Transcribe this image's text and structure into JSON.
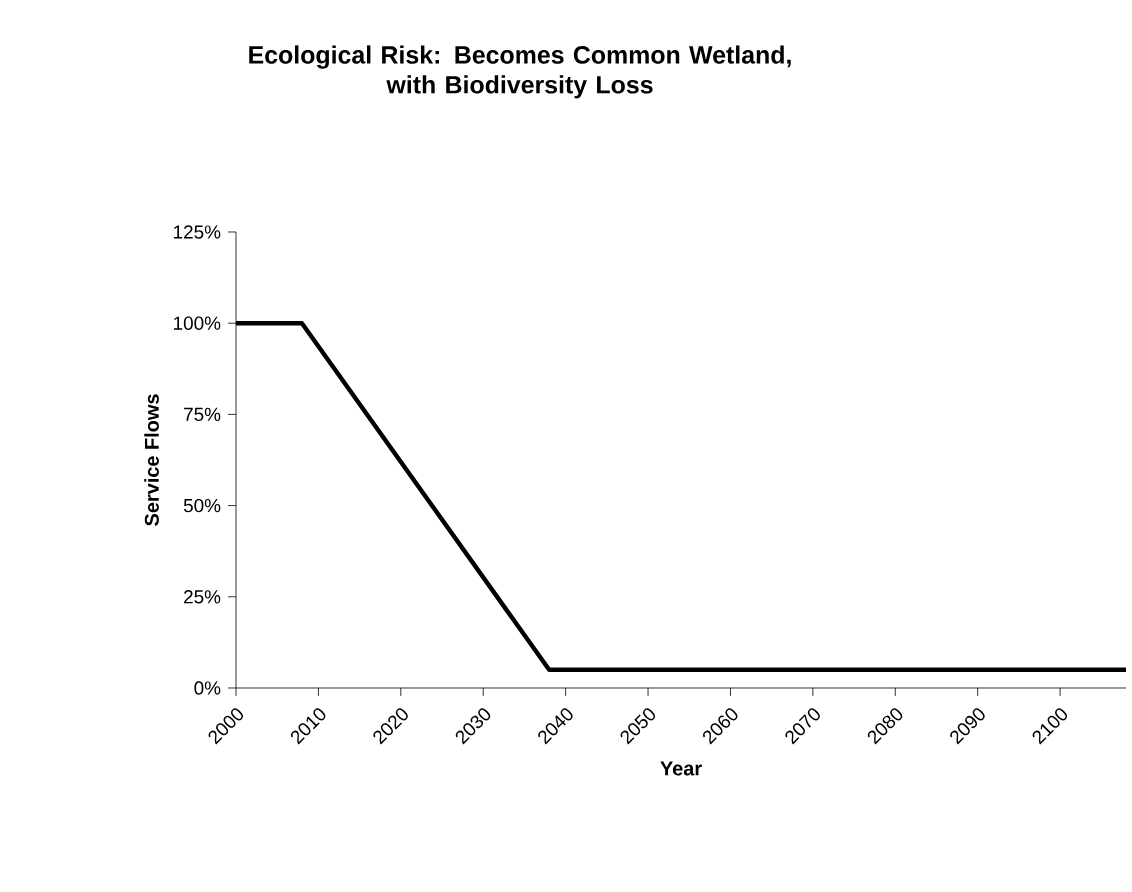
{
  "chart_data": {
    "type": "line",
    "title": "Ecological Risk: Becomes Common Wetland,\nwith Biodiversity Loss",
    "xlabel": "Year",
    "ylabel": "Service Flows",
    "x": [
      2000,
      2008,
      2038,
      2108
    ],
    "series": [
      {
        "color": "#000000",
        "values": [
          100,
          100,
          5,
          5
        ]
      }
    ],
    "xlim": [
      2000,
      2108
    ],
    "xticks": [
      2000,
      2010,
      2020,
      2030,
      2040,
      2050,
      2060,
      2070,
      2080,
      2090,
      2100
    ],
    "ylim": [
      0,
      125
    ],
    "yticks": [
      {
        "value": 0,
        "label": "0%"
      },
      {
        "value": 25,
        "label": "25%"
      },
      {
        "value": 50,
        "label": "50%"
      },
      {
        "value": 75,
        "label": "75%"
      },
      {
        "value": 100,
        "label": "100%"
      },
      {
        "value": 125,
        "label": "125%"
      }
    ],
    "grid": false,
    "legend": false,
    "marker": "none",
    "line_style": "solid"
  }
}
